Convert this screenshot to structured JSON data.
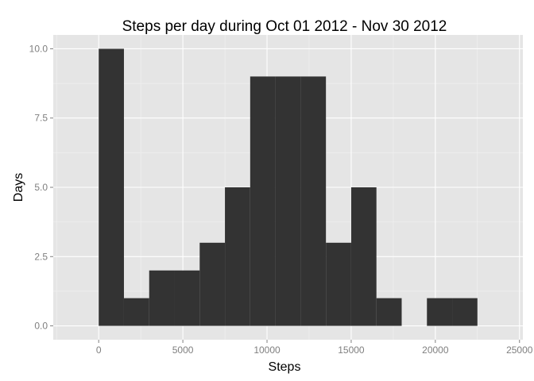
{
  "chart_data": {
    "type": "bar",
    "title": "Steps per day during Oct 01 2012 - Nov 30 2012",
    "xlabel": "Steps",
    "ylabel": "Days",
    "bin_width": 1500,
    "bins": [
      {
        "start": 0,
        "end": 1500,
        "count": 10
      },
      {
        "start": 1500,
        "end": 3000,
        "count": 1
      },
      {
        "start": 3000,
        "end": 4500,
        "count": 2
      },
      {
        "start": 4500,
        "end": 6000,
        "count": 2
      },
      {
        "start": 6000,
        "end": 7500,
        "count": 3
      },
      {
        "start": 7500,
        "end": 9000,
        "count": 5
      },
      {
        "start": 9000,
        "end": 10500,
        "count": 9
      },
      {
        "start": 10500,
        "end": 12000,
        "count": 9
      },
      {
        "start": 12000,
        "end": 13500,
        "count": 9
      },
      {
        "start": 13500,
        "end": 15000,
        "count": 3
      },
      {
        "start": 15000,
        "end": 16500,
        "count": 5
      },
      {
        "start": 16500,
        "end": 18000,
        "count": 1
      },
      {
        "start": 18000,
        "end": 19500,
        "count": 0
      },
      {
        "start": 19500,
        "end": 21000,
        "count": 1
      },
      {
        "start": 21000,
        "end": 22500,
        "count": 1
      }
    ],
    "xlim": [
      -2700,
      25200
    ],
    "ylim": [
      -0.5,
      10.5
    ],
    "x_ticks": [
      0,
      5000,
      10000,
      15000,
      20000,
      25000
    ],
    "x_tick_labels": [
      "0",
      "5000",
      "10000",
      "15000",
      "20000",
      "25000"
    ],
    "y_ticks": [
      0,
      2.5,
      5,
      7.5,
      10
    ],
    "y_tick_labels": [
      "0.0",
      "2.5",
      "5.0",
      "7.5",
      "10.0"
    ],
    "grid": true,
    "colors": {
      "bar": "#333333",
      "panel": "#e5e5e5",
      "grid_major": "#ffffff",
      "grid_minor": "#f2f2f2",
      "tick_label": "#7f7f7f"
    }
  }
}
